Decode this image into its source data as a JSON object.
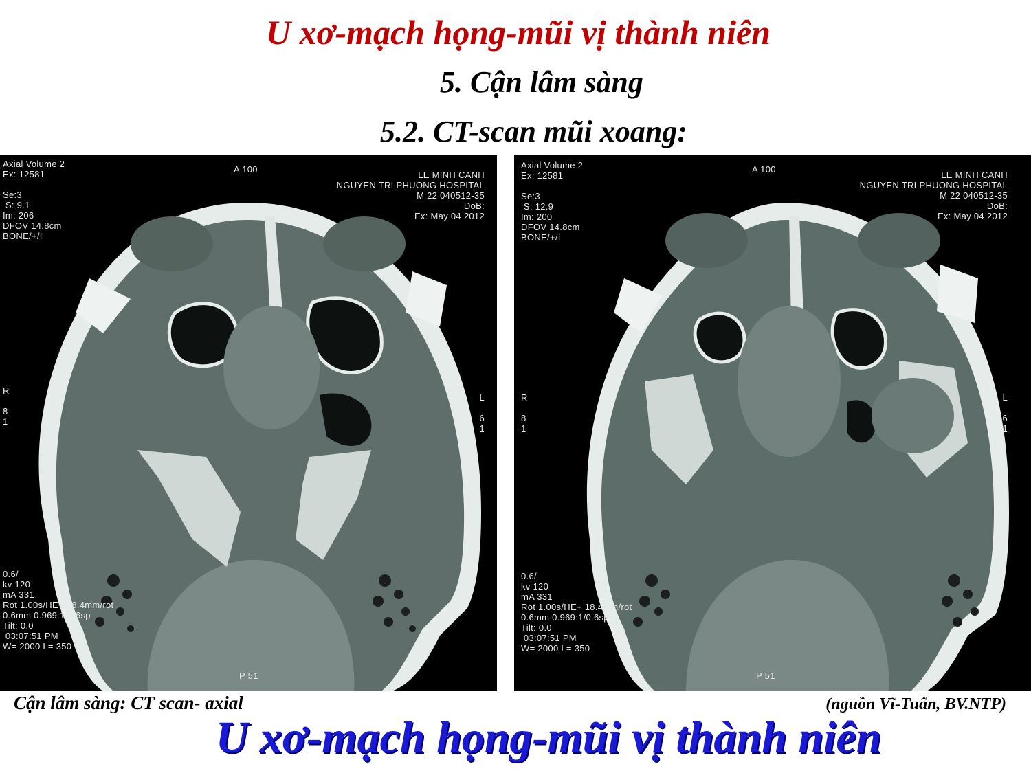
{
  "slide": {
    "title": "U xơ-mạch họng-mũi vị thành niên",
    "section": "5. Cận lâm sàng",
    "subsection": "5.2. CT-scan mũi xoang:",
    "caption_left": "Cận lâm sàng: CT scan- axial",
    "caption_right": "(nguồn Vĩ-Tuấn, BV.NTP)",
    "bottom_title": "U xơ-mạch họng-mũi vị thành niên"
  },
  "scan_left": {
    "top_left": "Axial Volume 2\nEx: 12581\n\nSe:3\n S: 9.1\nIm: 206\nDFOV 14.8cm\nBONE/+/I",
    "top_center": "A 100",
    "top_right": "LE MINH CANH\nNGUYEN TRI PHUONG HOSPITAL\nM 22 040512-35\nDoB:\nEx: May 04 2012",
    "left_mid": "R\n\n8\n1",
    "right_mid": "L\n\n6\n1",
    "bottom_left": "0.6/\nkv 120\nmA 331\nRot 1.00s/HE+ 18.4mm/rot\n0.6mm 0.969:1/0.6sp\nTilt: 0.0\n 03:07:51 PM\nW= 2000 L= 350",
    "bottom_center": "P 51"
  },
  "scan_right": {
    "top_left": "Axial Volume 2\nEx: 12581\n\nSe:3\n S: 12.9\nIm: 200\nDFOV 14.8cm\nBONE/+/I",
    "top_center": "A 100",
    "top_right": "LE MINH CANH\nNGUYEN TRI PHUONG HOSPITAL\nM 22 040512-35\nDoB:\nEx: May 04 2012",
    "left_mid": "R\n\n8\n1",
    "right_mid": "L\n\n6\n1",
    "bottom_left": "0.6/\nkv 120\nmA 331\nRot 1.00s/HE+ 18.4mm/rot\n0.6mm 0.969:1/0.6sp\nTilt: 0.0\n 03:07:51 PM\nW= 2000 L= 350",
    "bottom_center": "P 51"
  }
}
